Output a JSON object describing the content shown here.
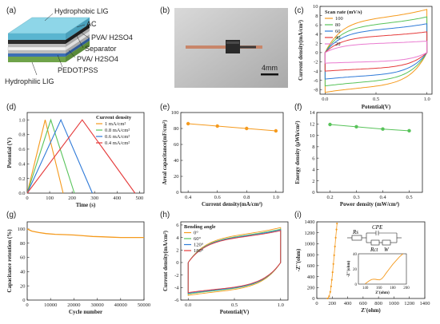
{
  "colors": {
    "orange": "#f59a1d",
    "green": "#58c35a",
    "blue": "#2f7ad8",
    "red": "#e53b3b",
    "pink": "#e97bd0"
  },
  "panels": {
    "a": "(a)",
    "b": "(b)",
    "c": "(c)",
    "d": "(d)",
    "e": "(e)",
    "f": "(f)",
    "g": "(g)",
    "h": "(h)",
    "i": "(i)"
  },
  "diagram": {
    "layers": [
      "Hydrophobic LIG",
      "AC",
      "PVA/ H2SO4",
      "Separator",
      "PVA/ H2SO4",
      "PEDOT:PSS",
      "Hydrophilic LIG"
    ]
  },
  "photo": {
    "scale_bar": "4mm"
  },
  "circuit": {
    "rs": "Rs",
    "cpe": "CPE",
    "rct": "Rct",
    "w": "W"
  },
  "chart_data": [
    {
      "id": "c",
      "type": "line",
      "xlabel": "Potential(V)",
      "ylabel": "Current density(mA/cm²)",
      "xlim": [
        -0.05,
        1.05
      ],
      "ylim": [
        -9,
        10
      ],
      "xticks": [
        0.0,
        0.5,
        1.0
      ],
      "xticklabels": [
        "0.0",
        "0.5",
        "1.0"
      ],
      "yticks": [
        -8,
        -6,
        -4,
        -2,
        0,
        2,
        4,
        6,
        8,
        10
      ],
      "yticklabels": [
        "-8",
        "-6",
        "-4",
        "-2",
        "0",
        "2",
        "4",
        "6",
        "8",
        "10"
      ],
      "legend_title": "Scan rate  (mV/s)",
      "legend_position": "top-left",
      "series": [
        {
          "name": "100",
          "color": "orange",
          "upper": 7.5,
          "lower": -7.5
        },
        {
          "name": "80",
          "color": "green",
          "upper": 6.2,
          "lower": -6.3
        },
        {
          "name": "60",
          "color": "blue",
          "upper": 5.0,
          "lower": -5.0
        },
        {
          "name": "40",
          "color": "red",
          "upper": 3.6,
          "lower": -3.5
        },
        {
          "name": "20",
          "color": "pink",
          "upper": 2.0,
          "lower": -2.0
        }
      ]
    },
    {
      "id": "d",
      "type": "line",
      "xlabel": "Time (s)",
      "ylabel": "Potential (V)",
      "xlim": [
        0,
        520
      ],
      "ylim": [
        0,
        1.1
      ],
      "xticks": [
        0,
        100,
        200,
        300,
        400,
        500
      ],
      "xticklabels": [
        "0",
        "100",
        "200",
        "300",
        "400",
        "500"
      ],
      "yticks": [
        0,
        0.2,
        0.4,
        0.6,
        0.8,
        1.0
      ],
      "yticklabels": [
        "0.0",
        "0.2",
        "0.4",
        "0.6",
        "0.8",
        "1.0"
      ],
      "legend_title": "Current density",
      "legend_position": "top-right",
      "series": [
        {
          "name": "1 mA/cm²",
          "color": "orange",
          "peak_t": 80,
          "end_t": 160
        },
        {
          "name": "0.8 mA/cm²",
          "color": "green",
          "peak_t": 105,
          "end_t": 210
        },
        {
          "name": "0.6 mA/cm²",
          "color": "blue",
          "peak_t": 150,
          "end_t": 290
        },
        {
          "name": "0.4 mA/cm²",
          "color": "red",
          "peak_t": 245,
          "end_t": 480
        }
      ]
    },
    {
      "id": "e",
      "type": "line",
      "xlabel": "Current density(mA/cm²)",
      "ylabel": "Areal capacitance(mF/cm²)",
      "xlim": [
        0.35,
        1.05
      ],
      "ylim": [
        0,
        100
      ],
      "xticks": [
        0.4,
        0.6,
        0.8,
        1.0
      ],
      "xticklabels": [
        "0.4",
        "0.6",
        "0.8",
        "1.0"
      ],
      "yticks": [
        0,
        20,
        40,
        60,
        80,
        100
      ],
      "yticklabels": [
        "0",
        "20",
        "40",
        "60",
        "80",
        "100"
      ],
      "series": [
        {
          "color": "orange",
          "x": [
            0.4,
            0.6,
            0.8,
            1.0
          ],
          "y": [
            86,
            83,
            80,
            77
          ]
        }
      ]
    },
    {
      "id": "f",
      "type": "line",
      "xlabel": "Power density (mW/cm²)",
      "ylabel": "Energy density (μWh/cm²)",
      "xlim": [
        0.15,
        0.55
      ],
      "ylim": [
        0,
        14
      ],
      "xticks": [
        0.2,
        0.3,
        0.4,
        0.5
      ],
      "xticklabels": [
        "0.2",
        "0.3",
        "0.4",
        "0.5"
      ],
      "yticks": [
        0,
        2,
        4,
        6,
        8,
        10,
        12,
        14
      ],
      "yticklabels": [
        "0",
        "2",
        "4",
        "6",
        "8",
        "10",
        "12",
        "14"
      ],
      "series": [
        {
          "color": "green",
          "x": [
            0.2,
            0.3,
            0.4,
            0.5
          ],
          "y": [
            11.9,
            11.5,
            11.1,
            10.8
          ]
        }
      ]
    },
    {
      "id": "g",
      "type": "line",
      "xlabel": "Cycle number",
      "ylabel": "Capacitance retention (%)",
      "xlim": [
        0,
        50000
      ],
      "ylim": [
        0,
        110
      ],
      "xticks": [
        0,
        10000,
        20000,
        30000,
        40000,
        50000
      ],
      "xticklabels": [
        "0",
        "10000",
        "20000",
        "30000",
        "40000",
        "50000"
      ],
      "yticks": [
        0,
        20,
        40,
        60,
        80,
        100
      ],
      "yticklabels": [
        "0",
        "20",
        "40",
        "60",
        "80",
        "100"
      ],
      "series": [
        {
          "color": "orange",
          "x": [
            0,
            2000,
            5000,
            8000,
            12000,
            16000,
            20000,
            24000,
            28000,
            32000,
            36000,
            40000,
            44000,
            48000,
            50000
          ],
          "y": [
            100,
            97,
            95,
            93.5,
            92.5,
            92,
            91.5,
            90.5,
            89.5,
            89,
            88.5,
            88,
            88,
            88,
            88
          ]
        }
      ]
    },
    {
      "id": "h",
      "type": "line",
      "xlabel": "Potential(V)",
      "ylabel": "Current density(mA/cm²)",
      "xlim": [
        -0.08,
        1.08
      ],
      "ylim": [
        -6,
        6.5
      ],
      "xticks": [
        0.0,
        0.5,
        1.0
      ],
      "xticklabels": [
        "0.0",
        "0.5",
        "1.0"
      ],
      "yticks": [
        -6,
        -4,
        -2,
        0,
        2,
        4,
        6
      ],
      "yticklabels": [
        "-6",
        "-4",
        "-2",
        "0",
        "2",
        "4",
        "6"
      ],
      "legend_title": "Bending angle",
      "legend_position": "top-left",
      "series": [
        {
          "name": "0°",
          "color": "orange",
          "upper": 4.5,
          "lower": -4.6
        },
        {
          "name": "60°",
          "color": "green",
          "upper": 4.3,
          "lower": -4.4
        },
        {
          "name": "120°",
          "color": "blue",
          "upper": 4.2,
          "lower": -4.3
        },
        {
          "name": "180°",
          "color": "red",
          "upper": 4.1,
          "lower": -4.2
        }
      ]
    },
    {
      "id": "i",
      "type": "scatter",
      "xlabel": "Z'(ohm)",
      "ylabel": "-Z''(ohm)",
      "xlim": [
        0,
        1400
      ],
      "ylim": [
        0,
        1400
      ],
      "xticks": [
        0,
        200,
        400,
        600,
        800,
        1000,
        1200,
        1400
      ],
      "xticklabels": [
        "0",
        "200",
        "400",
        "600",
        "800",
        "1000",
        "1200",
        "1400"
      ],
      "yticks": [
        0,
        200,
        400,
        600,
        800,
        1000,
        1200,
        1400
      ],
      "yticklabels": [
        "0",
        "200",
        "400",
        "600",
        "800",
        "1000",
        "1200",
        "1400"
      ],
      "series": [
        {
          "color": "orange",
          "x": [
            140,
            160,
            175,
            185,
            195,
            205,
            215,
            225,
            235,
            245,
            255,
            262
          ],
          "y": [
            0,
            40,
            120,
            220,
            340,
            480,
            630,
            790,
            950,
            1110,
            1260,
            1370
          ]
        }
      ],
      "inset": {
        "xlabel": "Z'(ohm)",
        "ylabel": "-Z''(ohm)",
        "xlim": [
          130,
          200
        ],
        "ylim": [
          0,
          40
        ],
        "xticks": [
          140,
          160,
          180,
          200
        ],
        "xticklabels": [
          "140",
          "160",
          "180",
          "200"
        ],
        "yticks": [
          0,
          20,
          40
        ],
        "yticklabels": [
          "0",
          "20",
          "40"
        ],
        "x": [
          140,
          143,
          146,
          149,
          152,
          155,
          158,
          161,
          164,
          167,
          170,
          175,
          180,
          185,
          190,
          195
        ],
        "y": [
          0.5,
          2.5,
          4.5,
          6,
          6.5,
          6.3,
          5.8,
          5.6,
          7,
          10,
          14,
          20,
          26,
          31,
          36,
          40
        ]
      }
    }
  ]
}
